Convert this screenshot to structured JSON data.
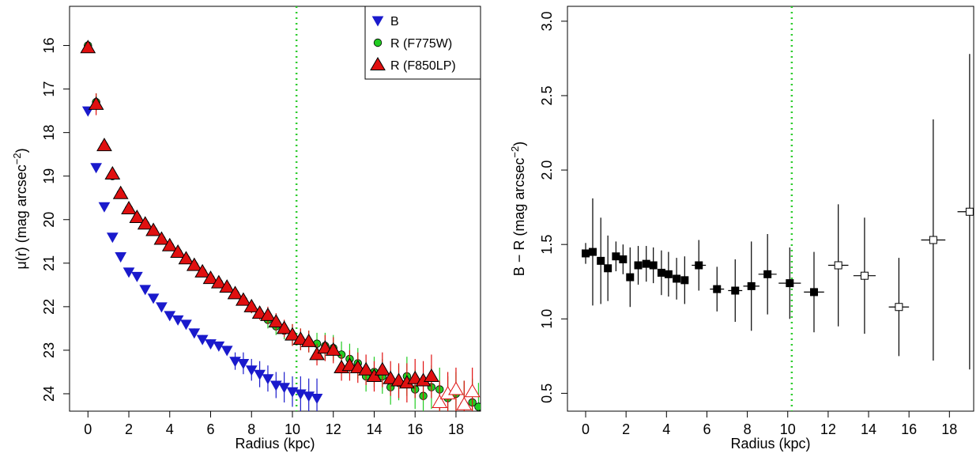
{
  "chart_data": [
    {
      "type": "scatter",
      "xlabel": "Radius (kpc)",
      "ylabel": "μ(r) (mag arcsec",
      "ylabel_sup": "−2",
      "ylabel_close": ")",
      "xlim": [
        -0.9,
        19.2
      ],
      "ylim": [
        24.4,
        15.1
      ],
      "y_inverted": true,
      "xticks": [
        0,
        2,
        4,
        6,
        8,
        10,
        12,
        14,
        16,
        18
      ],
      "yticks": [
        16,
        17,
        18,
        19,
        20,
        21,
        22,
        23,
        24
      ],
      "vline_x": 10.2,
      "vline_color": "#2ecc2e",
      "legend_position": "top-right",
      "series": [
        {
          "name": "B",
          "marker": "triangle-down",
          "color": "#1a1acc",
          "x": [
            0.0,
            0.4,
            0.8,
            1.2,
            1.6,
            2.0,
            2.4,
            2.8,
            3.2,
            3.6,
            4.0,
            4.4,
            4.8,
            5.2,
            5.6,
            6.0,
            6.4,
            6.8,
            7.2,
            7.6,
            8.0,
            8.4,
            8.8,
            9.2,
            9.6,
            10.0,
            10.4,
            10.8,
            11.2
          ],
          "y": [
            17.5,
            18.8,
            19.7,
            20.4,
            20.85,
            21.2,
            21.3,
            21.6,
            21.8,
            22.0,
            22.2,
            22.3,
            22.4,
            22.6,
            22.75,
            22.85,
            22.9,
            23.0,
            23.25,
            23.3,
            23.45,
            23.55,
            23.65,
            23.8,
            23.85,
            23.95,
            24.0,
            24.05,
            24.1
          ],
          "err": [
            0.05,
            0.05,
            0.05,
            0.05,
            0.05,
            0.05,
            0.05,
            0.05,
            0.05,
            0.05,
            0.05,
            0.05,
            0.05,
            0.1,
            0.1,
            0.1,
            0.1,
            0.1,
            0.2,
            0.25,
            0.25,
            0.3,
            0.3,
            0.3,
            0.35,
            0.35,
            0.4,
            0.4,
            0.45
          ]
        },
        {
          "name": "R (F775W)",
          "marker": "circle",
          "color": "#22cc22",
          "x": [
            0.0,
            0.4,
            0.8,
            1.2,
            1.6,
            2.0,
            2.4,
            2.8,
            3.2,
            3.6,
            4.0,
            4.4,
            4.8,
            5.2,
            5.6,
            6.0,
            6.4,
            6.8,
            7.2,
            7.6,
            8.0,
            8.4,
            8.8,
            9.2,
            9.6,
            10.0,
            10.4,
            10.8,
            11.2,
            11.6,
            12.0,
            12.4,
            12.8,
            13.2,
            13.6,
            14.0,
            14.4,
            14.8,
            15.2,
            15.6,
            16.0,
            16.4,
            16.8,
            17.2,
            17.6,
            18.0,
            18.4,
            18.8,
            19.1
          ],
          "y": [
            16.0,
            17.3,
            18.3,
            19.0,
            19.4,
            19.75,
            19.95,
            20.1,
            20.25,
            20.45,
            20.6,
            20.75,
            20.9,
            21.05,
            21.2,
            21.35,
            21.45,
            21.55,
            21.7,
            21.85,
            22.0,
            22.15,
            22.3,
            22.45,
            22.55,
            22.65,
            22.75,
            22.8,
            22.85,
            22.9,
            22.95,
            23.1,
            23.2,
            23.3,
            23.6,
            23.5,
            23.6,
            23.85,
            23.75,
            23.6,
            23.9,
            24.05,
            23.85,
            23.9,
            24.1,
            24.0,
            24.25,
            24.2,
            24.3
          ],
          "err": [
            0.05,
            0.2,
            0.05,
            0.05,
            0.05,
            0.05,
            0.05,
            0.05,
            0.05,
            0.05,
            0.05,
            0.05,
            0.05,
            0.05,
            0.05,
            0.1,
            0.1,
            0.1,
            0.1,
            0.1,
            0.15,
            0.15,
            0.2,
            0.2,
            0.2,
            0.25,
            0.25,
            0.25,
            0.25,
            0.3,
            0.3,
            0.3,
            0.35,
            0.35,
            0.35,
            0.35,
            0.4,
            0.4,
            0.4,
            0.45,
            0.45,
            0.45,
            0.5,
            0.5,
            0.5,
            0.5,
            0.55,
            0.55,
            0.55
          ]
        },
        {
          "name": "R (F850LP)",
          "marker": "triangle-up",
          "color": "#e01010",
          "x": [
            0.0,
            0.4,
            0.8,
            1.2,
            1.6,
            2.0,
            2.4,
            2.8,
            3.2,
            3.6,
            4.0,
            4.4,
            4.8,
            5.2,
            5.6,
            6.0,
            6.4,
            6.8,
            7.2,
            7.6,
            8.0,
            8.4,
            8.8,
            9.2,
            9.6,
            10.0,
            10.4,
            10.8,
            11.2,
            11.6,
            12.0,
            12.4,
            12.8,
            13.2,
            13.6,
            14.0,
            14.4,
            14.8,
            15.2,
            15.6,
            16.0,
            16.4,
            16.8,
            17.2,
            17.6,
            18.0,
            18.4,
            18.8
          ],
          "y": [
            16.05,
            17.35,
            18.3,
            18.95,
            19.4,
            19.75,
            19.95,
            20.1,
            20.25,
            20.45,
            20.6,
            20.75,
            20.9,
            21.05,
            21.2,
            21.35,
            21.45,
            21.55,
            21.7,
            21.85,
            22.0,
            22.15,
            22.2,
            22.35,
            22.5,
            22.65,
            22.75,
            22.8,
            23.1,
            22.95,
            23.0,
            23.4,
            23.35,
            23.4,
            23.45,
            23.6,
            23.45,
            23.65,
            23.7,
            23.75,
            23.65,
            23.7,
            23.6,
            24.2,
            24.0,
            23.9,
            24.25,
            23.95
          ],
          "err": [
            0.05,
            0.25,
            0.05,
            0.05,
            0.05,
            0.05,
            0.05,
            0.05,
            0.05,
            0.05,
            0.05,
            0.05,
            0.05,
            0.05,
            0.05,
            0.1,
            0.1,
            0.1,
            0.1,
            0.1,
            0.15,
            0.15,
            0.2,
            0.2,
            0.2,
            0.25,
            0.25,
            0.25,
            0.25,
            0.3,
            0.3,
            0.3,
            0.35,
            0.35,
            0.35,
            0.35,
            0.4,
            0.4,
            0.4,
            0.45,
            0.45,
            0.45,
            0.5,
            0.5,
            0.5,
            0.5,
            0.55,
            0.55
          ],
          "open_from_x": 17.2
        }
      ]
    },
    {
      "type": "scatter",
      "xlabel": "Radius (kpc)",
      "ylabel": "B − R (mag arcsec",
      "ylabel_sup": "−2",
      "ylabel_close": ")",
      "xlim": [
        -0.9,
        19.2
      ],
      "ylim": [
        0.38,
        3.1
      ],
      "xticks": [
        0,
        2,
        4,
        6,
        8,
        10,
        12,
        14,
        16,
        18
      ],
      "yticks": [
        0.5,
        1.0,
        1.5,
        2.0,
        2.5,
        3.0
      ],
      "yticklabels": [
        "0.5",
        "1.0",
        "1.5",
        "2.0",
        "2.5",
        "3.0"
      ],
      "vline_x": 10.2,
      "vline_color": "#2ecc2e",
      "series": [
        {
          "name": "",
          "marker": "square",
          "color": "#000000",
          "x": [
            0.0,
            0.35,
            0.75,
            1.1,
            1.5,
            1.85,
            2.2,
            2.6,
            3.0,
            3.35,
            3.75,
            4.1,
            4.5,
            4.9,
            5.6,
            6.5,
            7.4,
            8.2,
            9.0,
            10.1,
            11.3,
            12.5,
            13.8,
            15.5,
            17.2,
            19.0
          ],
          "y": [
            1.44,
            1.45,
            1.39,
            1.34,
            1.42,
            1.4,
            1.28,
            1.36,
            1.37,
            1.36,
            1.31,
            1.3,
            1.27,
            1.26,
            1.36,
            1.2,
            1.19,
            1.22,
            1.3,
            1.24,
            1.18,
            1.36,
            1.29,
            1.08,
            1.53,
            1.72
          ],
          "yerr": [
            0.07,
            0.36,
            0.29,
            0.22,
            0.1,
            0.1,
            0.2,
            0.13,
            0.12,
            0.12,
            0.15,
            0.15,
            0.14,
            0.16,
            0.17,
            0.15,
            0.21,
            0.3,
            0.27,
            0.24,
            0.27,
            0.41,
            0.39,
            0.33,
            0.81,
            1.06
          ],
          "xerr": [
            0.05,
            0.05,
            0.05,
            0.05,
            0.05,
            0.05,
            0.05,
            0.05,
            0.05,
            0.05,
            0.05,
            0.05,
            0.05,
            0.05,
            0.35,
            0.35,
            0.35,
            0.4,
            0.45,
            0.55,
            0.5,
            0.5,
            0.55,
            0.5,
            0.6,
            0.6
          ],
          "open_from_x": 12.5
        }
      ]
    }
  ]
}
